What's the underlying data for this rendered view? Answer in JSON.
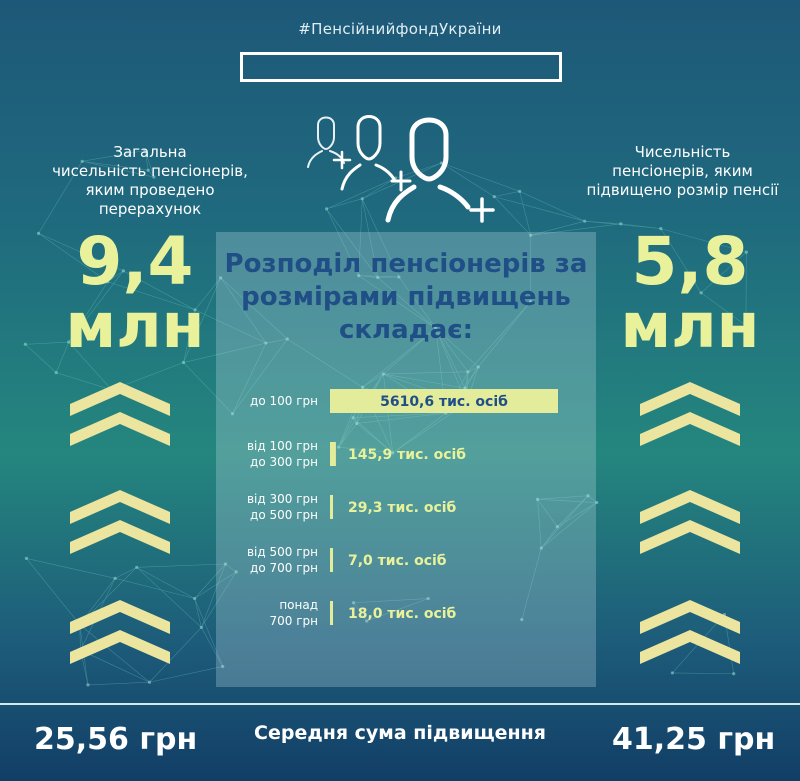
{
  "hashtag": "#ПенсійнийфондУкраїни",
  "left_stat": {
    "label_lines": [
      "Загальна",
      "чисельність пенсіонерів,",
      "яким проведено перерахунок"
    ],
    "value": "9,4",
    "unit": "млн"
  },
  "right_stat": {
    "label_lines": [
      "Чисельність",
      "пенсіонерів, яким",
      "підвищено розмір пенсії"
    ],
    "value": "5,8",
    "unit": "млн"
  },
  "panel_title_lines": [
    "Розподіл пенсіонерів за",
    "розмірами підвищень",
    "складає:"
  ],
  "footer": {
    "left_amount": "25,56 грн",
    "caption": "Середня сума підвищення",
    "right_amount": "41,25 грн"
  },
  "colors": {
    "accent": "#e9f29a",
    "bar_fill": "#e3ec9b",
    "title_blue": "#1f4f86",
    "chevron": "#ebe5a0"
  },
  "icons": [
    "user-icon",
    "user-icon",
    "user-icon",
    "plus-icon"
  ],
  "chart_data": {
    "type": "bar",
    "orientation": "horizontal",
    "categories": [
      [
        "до 100 грн"
      ],
      [
        "від 100 грн",
        "до 300 грн"
      ],
      [
        "від 300 грн",
        "до 500 грн"
      ],
      [
        "від 500 грн",
        "до 700 грн"
      ],
      [
        "понад",
        "700 грн"
      ]
    ],
    "values": [
      5610.6,
      145.9,
      29.3,
      7.0,
      18.0
    ],
    "value_labels": [
      "5610,6 тис. осіб",
      "145,9 тис. осіб",
      "29,3 тис. осіб",
      "7,0 тис. осіб",
      "18,0 тис. осіб"
    ]
  }
}
